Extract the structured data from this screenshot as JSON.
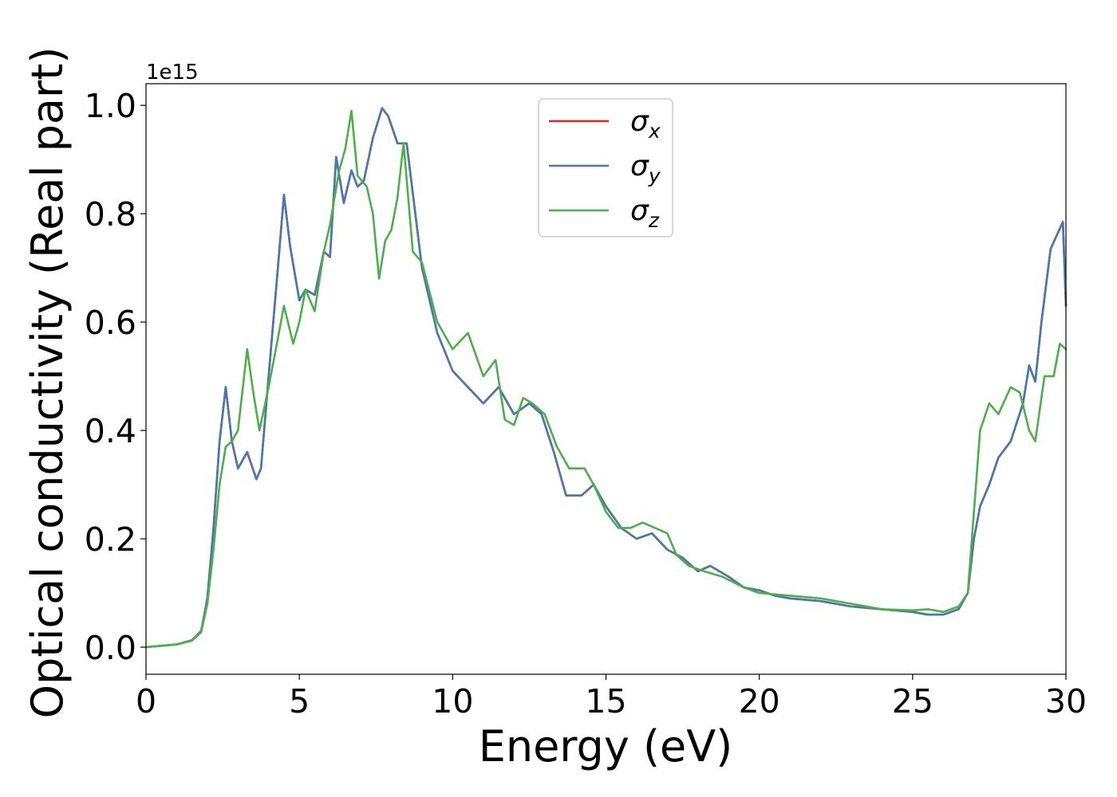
{
  "chart_data": {
    "type": "line",
    "xlabel": "Energy (eV)",
    "ylabel": "Optical conductivity (Real part)",
    "y_offset_label": "1e15",
    "xlim": [
      0,
      30
    ],
    "ylim": [
      -0.05,
      1.04
    ],
    "x_ticks": [
      {
        "value": 0,
        "label": "0"
      },
      {
        "value": 5,
        "label": "5"
      },
      {
        "value": 10,
        "label": "10"
      },
      {
        "value": 15,
        "label": "15"
      },
      {
        "value": 20,
        "label": "20"
      },
      {
        "value": 25,
        "label": "25"
      },
      {
        "value": 30,
        "label": "30"
      }
    ],
    "y_ticks": [
      {
        "value": 0.0,
        "label": "0.0"
      },
      {
        "value": 0.2,
        "label": "0.2"
      },
      {
        "value": 0.4,
        "label": "0.4"
      },
      {
        "value": 0.6,
        "label": "0.6"
      },
      {
        "value": 0.8,
        "label": "0.8"
      },
      {
        "value": 1.0,
        "label": "1.0"
      }
    ],
    "grid": false,
    "legend_position": "top-center",
    "series": [
      {
        "name": "σx",
        "symbol": "σ",
        "subscript": "x",
        "color": "#d62728",
        "x": [
          0,
          1,
          1.5,
          1.8,
          2.0,
          2.2,
          2.4,
          2.6,
          2.8,
          3.0,
          3.3,
          3.6,
          3.75,
          4.0,
          4.3,
          4.5,
          4.7,
          5.0,
          5.2,
          5.5,
          5.8,
          6.0,
          6.2,
          6.45,
          6.7,
          6.9,
          7.1,
          7.4,
          7.7,
          7.9,
          8.2,
          8.5,
          9.0,
          9.5,
          10,
          10.5,
          11,
          11.5,
          12,
          12.5,
          12.9,
          13.3,
          13.7,
          14.2,
          14.6,
          15,
          15.5,
          16,
          16.5,
          17,
          17.5,
          18,
          18.4,
          19,
          19.5,
          20,
          20.5,
          21,
          22,
          23,
          24,
          25,
          25.5,
          26,
          26.5,
          26.8,
          27.0,
          27.2,
          27.5,
          27.8,
          28.2,
          28.6,
          28.8,
          29,
          29.2,
          29.5,
          29.7,
          29.9,
          30
        ],
        "y": [
          0,
          0.005,
          0.013,
          0.03,
          0.09,
          0.22,
          0.38,
          0.48,
          0.38,
          0.33,
          0.36,
          0.31,
          0.33,
          0.5,
          0.7,
          0.835,
          0.74,
          0.64,
          0.66,
          0.65,
          0.73,
          0.72,
          0.905,
          0.82,
          0.88,
          0.85,
          0.86,
          0.94,
          0.995,
          0.98,
          0.93,
          0.93,
          0.7,
          0.58,
          0.51,
          0.48,
          0.45,
          0.48,
          0.43,
          0.45,
          0.43,
          0.36,
          0.28,
          0.28,
          0.3,
          0.26,
          0.22,
          0.2,
          0.21,
          0.18,
          0.165,
          0.14,
          0.15,
          0.13,
          0.11,
          0.105,
          0.095,
          0.09,
          0.085,
          0.075,
          0.07,
          0.065,
          0.06,
          0.06,
          0.07,
          0.1,
          0.2,
          0.26,
          0.3,
          0.35,
          0.38,
          0.45,
          0.52,
          0.49,
          0.6,
          0.735,
          0.76,
          0.785,
          0.63
        ]
      },
      {
        "name": "σy",
        "symbol": "σ",
        "subscript": "y",
        "color": "#4878b0",
        "x": [
          0,
          1,
          1.5,
          1.8,
          2.0,
          2.2,
          2.4,
          2.6,
          2.8,
          3.0,
          3.3,
          3.6,
          3.75,
          4.0,
          4.3,
          4.5,
          4.7,
          5.0,
          5.2,
          5.5,
          5.8,
          6.0,
          6.2,
          6.45,
          6.7,
          6.9,
          7.1,
          7.4,
          7.7,
          7.9,
          8.2,
          8.5,
          9.0,
          9.5,
          10,
          10.5,
          11,
          11.5,
          12,
          12.5,
          12.9,
          13.3,
          13.7,
          14.2,
          14.6,
          15,
          15.5,
          16,
          16.5,
          17,
          17.5,
          18,
          18.4,
          19,
          19.5,
          20,
          20.5,
          21,
          22,
          23,
          24,
          25,
          25.5,
          26,
          26.5,
          26.8,
          27.0,
          27.2,
          27.5,
          27.8,
          28.2,
          28.6,
          28.8,
          29,
          29.2,
          29.5,
          29.7,
          29.9,
          30
        ],
        "y": [
          0,
          0.005,
          0.013,
          0.03,
          0.09,
          0.22,
          0.38,
          0.48,
          0.38,
          0.33,
          0.36,
          0.31,
          0.33,
          0.5,
          0.7,
          0.835,
          0.74,
          0.64,
          0.66,
          0.65,
          0.73,
          0.72,
          0.905,
          0.82,
          0.88,
          0.85,
          0.86,
          0.94,
          0.995,
          0.98,
          0.93,
          0.93,
          0.7,
          0.58,
          0.51,
          0.48,
          0.45,
          0.48,
          0.43,
          0.45,
          0.43,
          0.36,
          0.28,
          0.28,
          0.3,
          0.26,
          0.22,
          0.2,
          0.21,
          0.18,
          0.165,
          0.14,
          0.15,
          0.13,
          0.11,
          0.105,
          0.095,
          0.09,
          0.085,
          0.075,
          0.07,
          0.065,
          0.06,
          0.06,
          0.07,
          0.1,
          0.2,
          0.26,
          0.3,
          0.35,
          0.38,
          0.45,
          0.52,
          0.49,
          0.6,
          0.735,
          0.76,
          0.785,
          0.63
        ]
      },
      {
        "name": "σz",
        "symbol": "σ",
        "subscript": "z",
        "color": "#4daf4a",
        "x": [
          0,
          1,
          1.5,
          1.8,
          2.0,
          2.2,
          2.4,
          2.6,
          2.8,
          3.0,
          3.3,
          3.5,
          3.7,
          4.0,
          4.3,
          4.5,
          4.8,
          5.0,
          5.2,
          5.5,
          5.8,
          6.0,
          6.3,
          6.5,
          6.7,
          6.9,
          7.2,
          7.4,
          7.6,
          7.8,
          8.0,
          8.2,
          8.4,
          8.7,
          9.0,
          9.5,
          10,
          10.5,
          11,
          11.4,
          11.7,
          12,
          12.3,
          12.6,
          13,
          13.4,
          13.8,
          14.3,
          14.6,
          15,
          15.4,
          15.8,
          16.2,
          16.6,
          17,
          17.3,
          17.7,
          18.2,
          18.8,
          19.5,
          20,
          21,
          22,
          23,
          24,
          25,
          25.5,
          26,
          26.5,
          26.8,
          27.0,
          27.2,
          27.5,
          27.8,
          28.2,
          28.5,
          28.8,
          29,
          29.3,
          29.6,
          29.8,
          30
        ],
        "y": [
          0,
          0.005,
          0.012,
          0.028,
          0.08,
          0.18,
          0.3,
          0.37,
          0.38,
          0.4,
          0.55,
          0.47,
          0.4,
          0.48,
          0.57,
          0.63,
          0.56,
          0.6,
          0.66,
          0.62,
          0.73,
          0.78,
          0.88,
          0.92,
          0.99,
          0.87,
          0.85,
          0.8,
          0.68,
          0.75,
          0.77,
          0.83,
          0.93,
          0.73,
          0.71,
          0.6,
          0.55,
          0.58,
          0.5,
          0.53,
          0.42,
          0.41,
          0.46,
          0.45,
          0.43,
          0.37,
          0.33,
          0.33,
          0.3,
          0.25,
          0.22,
          0.22,
          0.23,
          0.22,
          0.21,
          0.17,
          0.15,
          0.14,
          0.13,
          0.11,
          0.1,
          0.095,
          0.09,
          0.08,
          0.07,
          0.068,
          0.07,
          0.065,
          0.075,
          0.1,
          0.25,
          0.4,
          0.45,
          0.43,
          0.48,
          0.47,
          0.4,
          0.38,
          0.5,
          0.5,
          0.56,
          0.55
        ]
      }
    ]
  }
}
